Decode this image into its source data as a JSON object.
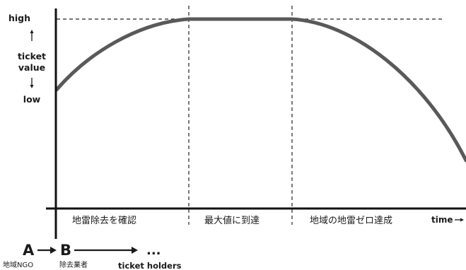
{
  "y_axis": {
    "high": "high",
    "low": "low",
    "title_line1": "ticket",
    "title_line2": "value"
  },
  "x_axis": {
    "title": "time"
  },
  "phases": [
    {
      "label": "地雷除去を確認"
    },
    {
      "label": "最大値に到達"
    },
    {
      "label": "地域の地雷ゼロ達成"
    }
  ],
  "holders": {
    "a": {
      "letter": "A",
      "caption": "地域NGO"
    },
    "b": {
      "letter": "B",
      "caption": "除去業者"
    },
    "ellipsis": "...",
    "caption": "ticket holders"
  },
  "colors": {
    "curve": "#595959",
    "axis": "#111111",
    "dashed": "#222222"
  }
}
